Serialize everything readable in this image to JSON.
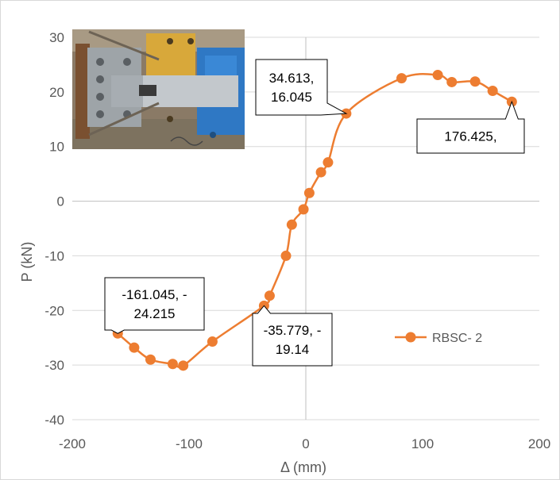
{
  "chart_data": {
    "type": "scatter",
    "xlabel": "Δ (mm)",
    "ylabel": "P (kN)",
    "xlim": [
      -200,
      200
    ],
    "ylim": [
      -40,
      30
    ],
    "xticks": [
      -200,
      -100,
      0,
      100,
      200
    ],
    "yticks": [
      -40,
      -30,
      -20,
      -10,
      0,
      10,
      20,
      30
    ],
    "grid": "horizontal",
    "legend_position": "right",
    "series": [
      {
        "name": "RBSC- 2",
        "color": "#ED7D31",
        "marker": "circle",
        "smooth": true,
        "x": [
          -161.045,
          -147,
          -133,
          -114,
          -105,
          -80,
          -35.779,
          -31,
          -17,
          -12,
          -2,
          3,
          13,
          19,
          34.613,
          82,
          113,
          125,
          145,
          160,
          176.425
        ],
        "y": [
          -24.215,
          -26.8,
          -29.0,
          -29.8,
          -30.1,
          -25.7,
          -19.14,
          -17.3,
          -10,
          -4.3,
          -1.5,
          1.5,
          5.3,
          7.1,
          16.045,
          22.5,
          23.1,
          21.8,
          21.9,
          20.2,
          18.2
        ]
      }
    ],
    "callouts": [
      {
        "text": [
          "34.613,",
          "16.045"
        ],
        "point": [
          34.613,
          16.045
        ]
      },
      {
        "text": [
          "176.425,"
        ],
        "point": [
          176.425,
          18.2
        ]
      },
      {
        "text": [
          "-161.045, -",
          "24.215"
        ],
        "point": [
          -161.045,
          -24.215
        ]
      },
      {
        "text": [
          "-35.779, -",
          "19.14"
        ],
        "point": [
          -35.779,
          -19.14
        ]
      }
    ]
  },
  "photo": {
    "description_icon": "test-specimen-photo"
  }
}
